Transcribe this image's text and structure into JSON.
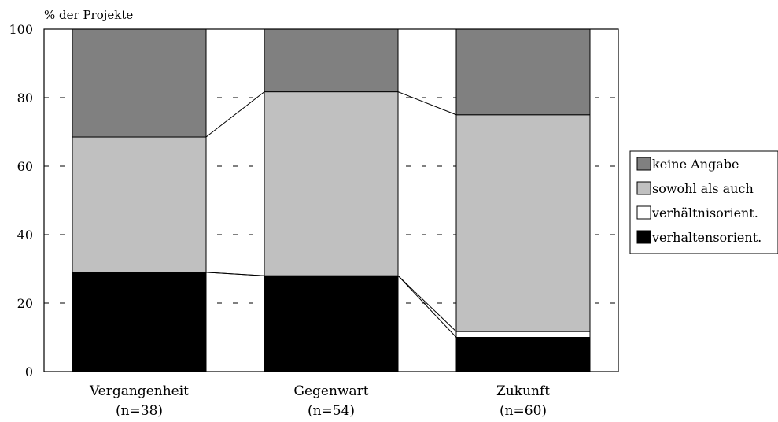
{
  "chart_data": {
    "type": "bar",
    "stacked": true,
    "ylabel": "% der Projekte",
    "ylim": [
      0,
      100
    ],
    "yticks": [
      0,
      20,
      40,
      60,
      80,
      100
    ],
    "grid": "dashed horizontal",
    "connector_lines": true,
    "legend_position": "right",
    "categories": [
      "Vergangenheit",
      "Gegenwart",
      "Zukunft"
    ],
    "category_sublabels": [
      "(n=38)",
      "(n=54)",
      "(n=60)"
    ],
    "series": [
      {
        "name": "verhaltensorient.",
        "color": "#000000",
        "values": [
          29,
          28,
          10
        ]
      },
      {
        "name": "verhältnisorient.",
        "color": "#ffffff",
        "values": [
          0,
          0,
          1.7
        ]
      },
      {
        "name": "sowohl als auch",
        "color": "#c0c0c0",
        "values": [
          39.5,
          53.7,
          63.3
        ]
      },
      {
        "name": "keine Angabe",
        "color": "#808080",
        "values": [
          31.5,
          18.3,
          25
        ]
      }
    ],
    "legend_order": [
      "keine Angabe",
      "sowohl als auch",
      "verhältnisorient.",
      "verhaltensorient."
    ]
  }
}
